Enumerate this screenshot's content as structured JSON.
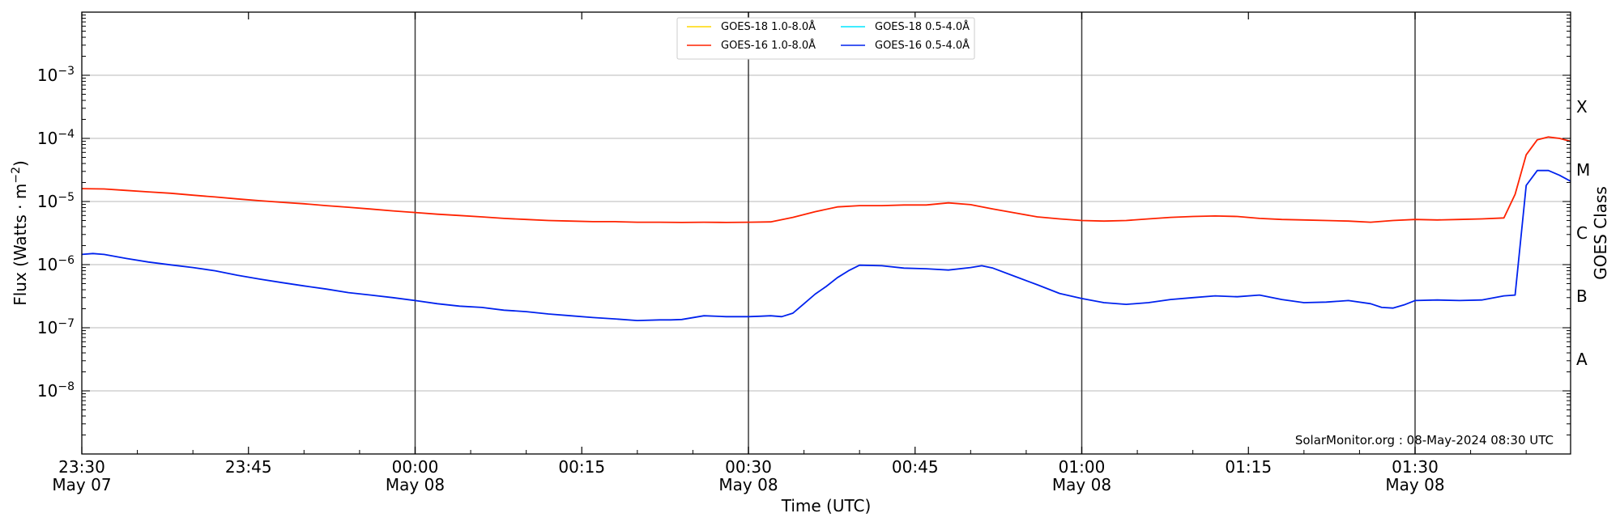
{
  "chart_data": {
    "type": "line",
    "xlabel": "Time (UTC)",
    "ylabel_main": "Flux (Watts · m",
    "ylabel_sup": "−2",
    "ylabel_close": ")",
    "y2label": "GOES Class",
    "yscale": "log",
    "ylim": [
      1e-09,
      0.01
    ],
    "x_ticks": [
      {
        "min": 0,
        "label": "23:30",
        "sub": "May 07"
      },
      {
        "min": 15,
        "label": "23:45",
        "sub": ""
      },
      {
        "min": 30,
        "label": "00:00",
        "sub": "May 08"
      },
      {
        "min": 45,
        "label": "00:15",
        "sub": ""
      },
      {
        "min": 60,
        "label": "00:30",
        "sub": "May 08"
      },
      {
        "min": 75,
        "label": "00:45",
        "sub": ""
      },
      {
        "min": 90,
        "label": "01:00",
        "sub": "May 08"
      },
      {
        "min": 105,
        "label": "01:15",
        "sub": ""
      },
      {
        "min": 120,
        "label": "01:30",
        "sub": "May 08"
      }
    ],
    "x_range_min": [
      0,
      134
    ],
    "day_lines_min": [
      30,
      60,
      90,
      120
    ],
    "y_ticks": [
      {
        "exp": -8,
        "base": "10",
        "sup": "−8"
      },
      {
        "exp": -7,
        "base": "10",
        "sup": "−7"
      },
      {
        "exp": -6,
        "base": "10",
        "sup": "−6"
      },
      {
        "exp": -5,
        "base": "10",
        "sup": "−5"
      },
      {
        "exp": -4,
        "base": "10",
        "sup": "−4"
      },
      {
        "exp": -3,
        "base": "10",
        "sup": "−3"
      }
    ],
    "goes_classes": [
      {
        "label": "A",
        "exp": -7.5
      },
      {
        "label": "B",
        "exp": -6.5
      },
      {
        "label": "C",
        "exp": -5.5
      },
      {
        "label": "M",
        "exp": -4.5
      },
      {
        "label": "X",
        "exp": -3.5
      }
    ],
    "legend": [
      {
        "name": "GOES-18 1.0-8.0Å",
        "color": "#FFD700"
      },
      {
        "name": "GOES-16 1.0-8.0Å",
        "color": "#FF2200"
      },
      {
        "name": "GOES-18 0.5-4.0Å",
        "color": "#00E5FF"
      },
      {
        "name": "GOES-16 0.5-4.0Å",
        "color": "#0022EE"
      }
    ],
    "series": [
      {
        "name": "GOES-16 1.0-8.0Å",
        "color": "#FF2200",
        "x_min": [
          0,
          2,
          4,
          6,
          8,
          10,
          12,
          14,
          16,
          18,
          20,
          22,
          24,
          26,
          28,
          30,
          32,
          34,
          36,
          38,
          40,
          42,
          44,
          46,
          48,
          50,
          52,
          54,
          56,
          58,
          60,
          62,
          64,
          66,
          68,
          70,
          72,
          74,
          76,
          78,
          80,
          82,
          84,
          86,
          88,
          90,
          92,
          94,
          96,
          98,
          100,
          102,
          104,
          106,
          108,
          110,
          112,
          114,
          116,
          118,
          120,
          122,
          124,
          126,
          128,
          129,
          130,
          131,
          132,
          133,
          134
        ],
        "y": [
          1.6e-05,
          1.58e-05,
          1.5e-05,
          1.42e-05,
          1.35e-05,
          1.26e-05,
          1.18e-05,
          1.1e-05,
          1.03e-05,
          9.7e-06,
          9.2e-06,
          8.6e-06,
          8.1e-06,
          7.6e-06,
          7.1e-06,
          6.7e-06,
          6.3e-06,
          6e-06,
          5.7e-06,
          5.4e-06,
          5.2e-06,
          5e-06,
          4.9e-06,
          4.8e-06,
          4.8e-06,
          4.7e-06,
          4.7e-06,
          4.65e-06,
          4.7e-06,
          4.65e-06,
          4.7e-06,
          4.75e-06,
          5.6e-06,
          6.9e-06,
          8.2e-06,
          8.6e-06,
          8.6e-06,
          8.8e-06,
          8.8e-06,
          9.5e-06,
          8.9e-06,
          7.6e-06,
          6.6e-06,
          5.7e-06,
          5.3e-06,
          5e-06,
          4.9e-06,
          5e-06,
          5.3e-06,
          5.6e-06,
          5.8e-06,
          5.9e-06,
          5.8e-06,
          5.4e-06,
          5.2e-06,
          5.1e-06,
          5e-06,
          4.9e-06,
          4.7e-06,
          5e-06,
          5.2e-06,
          5.1e-06,
          5.2e-06,
          5.3e-06,
          5.5e-06,
          1.3e-05,
          5.5e-05,
          9.5e-05,
          0.000105,
          0.0001,
          9e-05
        ]
      },
      {
        "name": "GOES-16 0.5-4.0Å",
        "color": "#0022EE",
        "x_min": [
          0,
          1,
          2,
          4,
          6,
          8,
          10,
          12,
          14,
          16,
          18,
          20,
          22,
          24,
          26,
          28,
          30,
          32,
          34,
          36,
          38,
          40,
          42,
          44,
          46,
          48,
          50,
          52,
          53,
          54,
          56,
          58,
          60,
          61,
          62,
          63,
          64,
          65,
          66,
          67,
          68,
          69,
          70,
          72,
          74,
          76,
          78,
          80,
          81,
          82,
          84,
          86,
          88,
          90,
          92,
          94,
          96,
          98,
          100,
          102,
          104,
          106,
          108,
          110,
          112,
          114,
          116,
          117,
          118,
          119,
          120,
          122,
          124,
          126,
          128,
          129,
          130,
          131,
          132,
          133,
          134
        ],
        "y": [
          1.45e-06,
          1.5e-06,
          1.45e-06,
          1.25e-06,
          1.1e-06,
          9.9e-07,
          9e-07,
          8e-07,
          6.8e-07,
          5.9e-07,
          5.2e-07,
          4.6e-07,
          4.1e-07,
          3.6e-07,
          3.3e-07,
          3e-07,
          2.7e-07,
          2.4e-07,
          2.2e-07,
          2.1e-07,
          1.9e-07,
          1.8e-07,
          1.65e-07,
          1.55e-07,
          1.45e-07,
          1.38e-07,
          1.3e-07,
          1.33e-07,
          1.33e-07,
          1.35e-07,
          1.55e-07,
          1.5e-07,
          1.5e-07,
          1.52e-07,
          1.55e-07,
          1.5e-07,
          1.7e-07,
          2.4e-07,
          3.4e-07,
          4.5e-07,
          6.2e-07,
          8e-07,
          9.8e-07,
          9.6e-07,
          8.8e-07,
          8.6e-07,
          8.2e-07,
          9e-07,
          9.6e-07,
          8.8e-07,
          6.5e-07,
          4.8e-07,
          3.5e-07,
          2.9e-07,
          2.5e-07,
          2.35e-07,
          2.5e-07,
          2.8e-07,
          3e-07,
          3.2e-07,
          3.1e-07,
          3.3e-07,
          2.8e-07,
          2.5e-07,
          2.55e-07,
          2.7e-07,
          2.4e-07,
          2.1e-07,
          2.05e-07,
          2.3e-07,
          2.7e-07,
          2.75e-07,
          2.7e-07,
          2.75e-07,
          3.2e-07,
          3.3e-07,
          1.8e-05,
          3.1e-05,
          3.1e-05,
          2.6e-05,
          2.1e-05
        ]
      }
    ],
    "credit": "SolarMonitor.org : 08-May-2024 08:30 UTC",
    "grid": "horizontal at decades"
  }
}
